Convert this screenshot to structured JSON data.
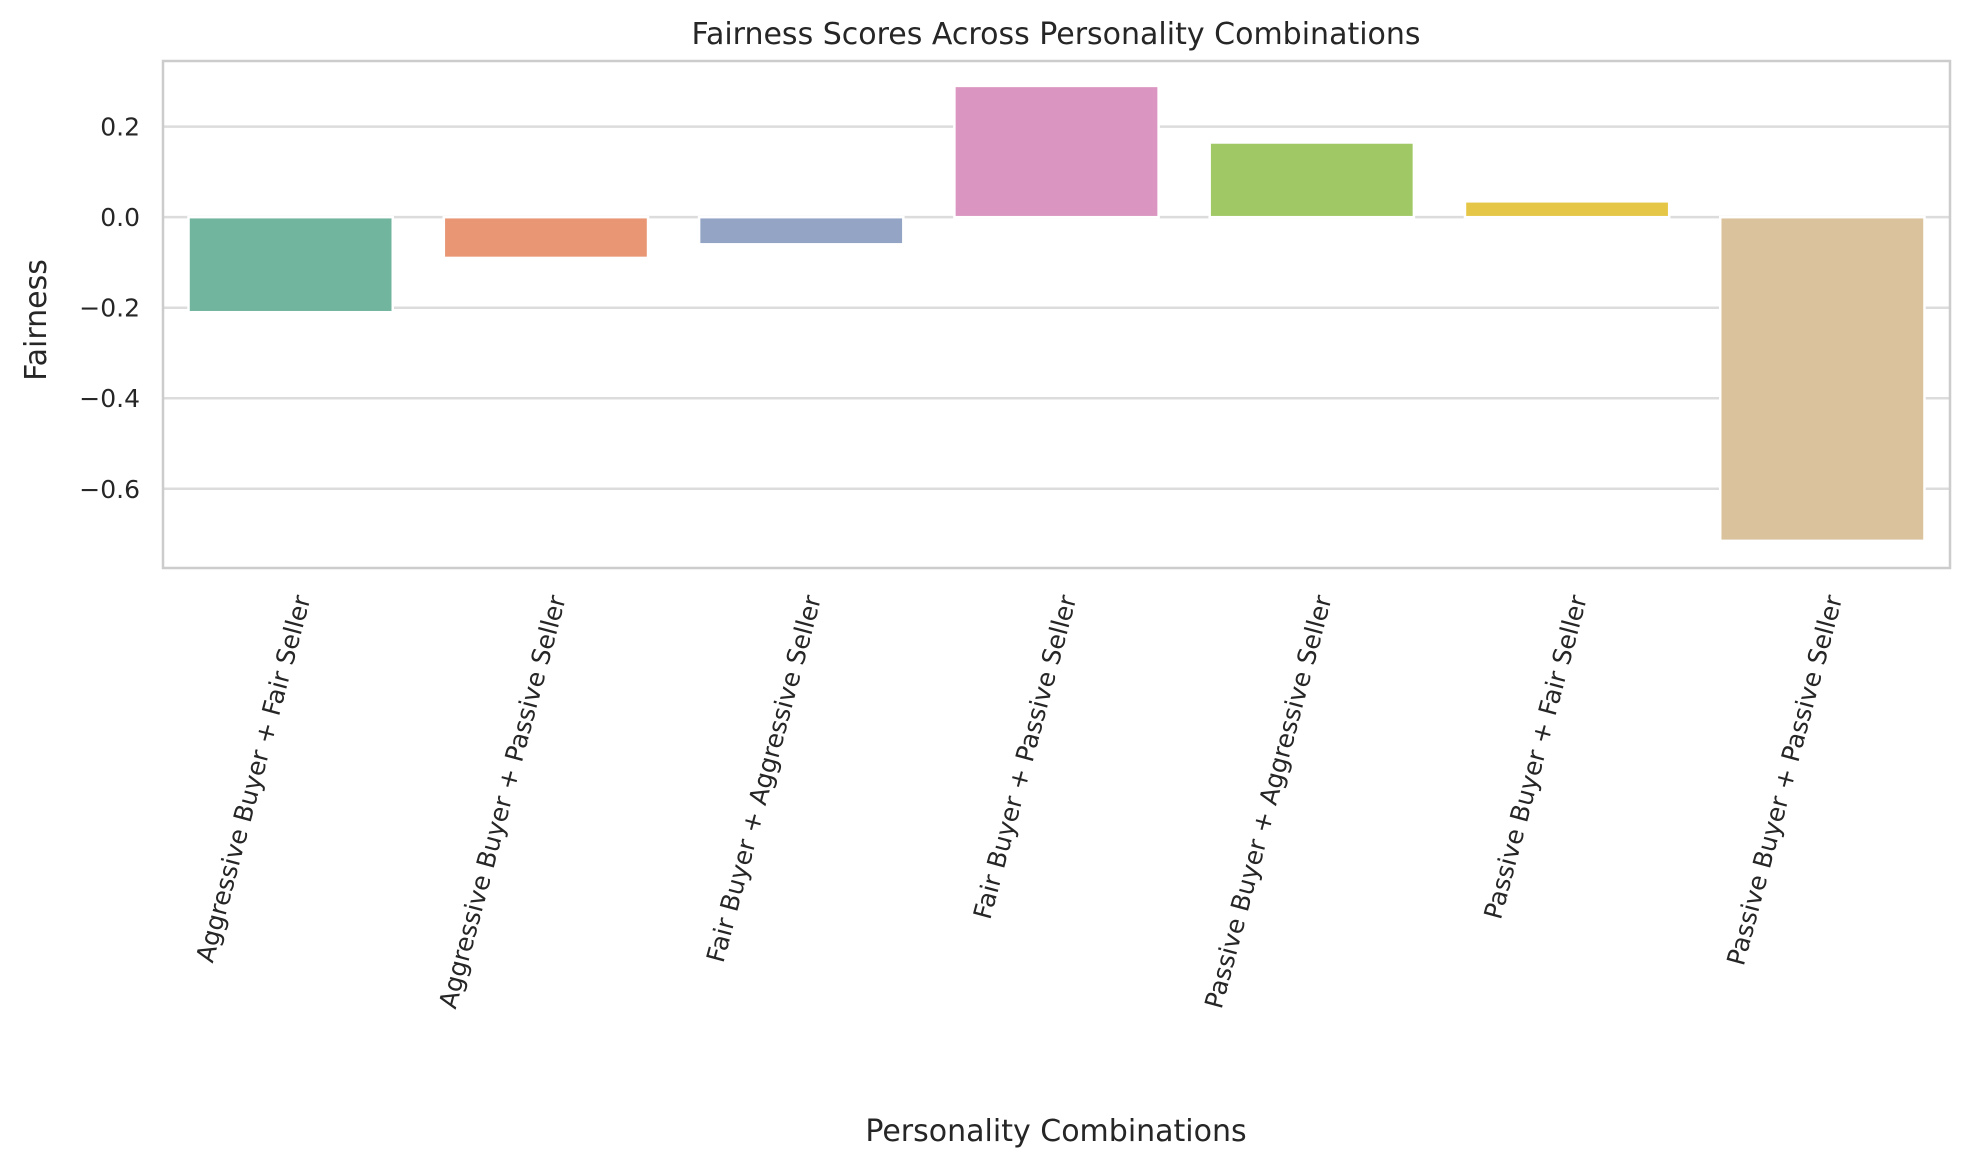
{
  "chart_data": {
    "type": "bar",
    "title": "Fairness Scores Across Personality Combinations",
    "xlabel": "Personality Combinations",
    "ylabel": "Fairness",
    "categories": [
      "Aggressive Buyer + Fair Seller",
      "Aggressive Buyer + Passive Seller",
      "Fair Buyer + Aggressive Seller",
      "Fair Buyer + Passive Seller",
      "Passive Buyer + Aggressive Seller",
      "Passive Buyer + Fair Seller",
      "Passive Buyer + Passive Seller"
    ],
    "values": [
      -0.21,
      -0.09,
      -0.06,
      0.29,
      0.165,
      0.035,
      -0.715
    ],
    "colors": [
      "#72b59e",
      "#e99675",
      "#93a4c5",
      "#da95c0",
      "#a0c865",
      "#e5c646",
      "#d9c29c"
    ],
    "ylim": [
      -0.775,
      0.345
    ],
    "yticks": [
      0.2,
      0.0,
      -0.2,
      -0.4,
      -0.6
    ],
    "ytick_labels": [
      "0.2",
      "0.0",
      "−0.2",
      "−0.4",
      "−0.6"
    ],
    "grid": true,
    "legend": "none"
  }
}
